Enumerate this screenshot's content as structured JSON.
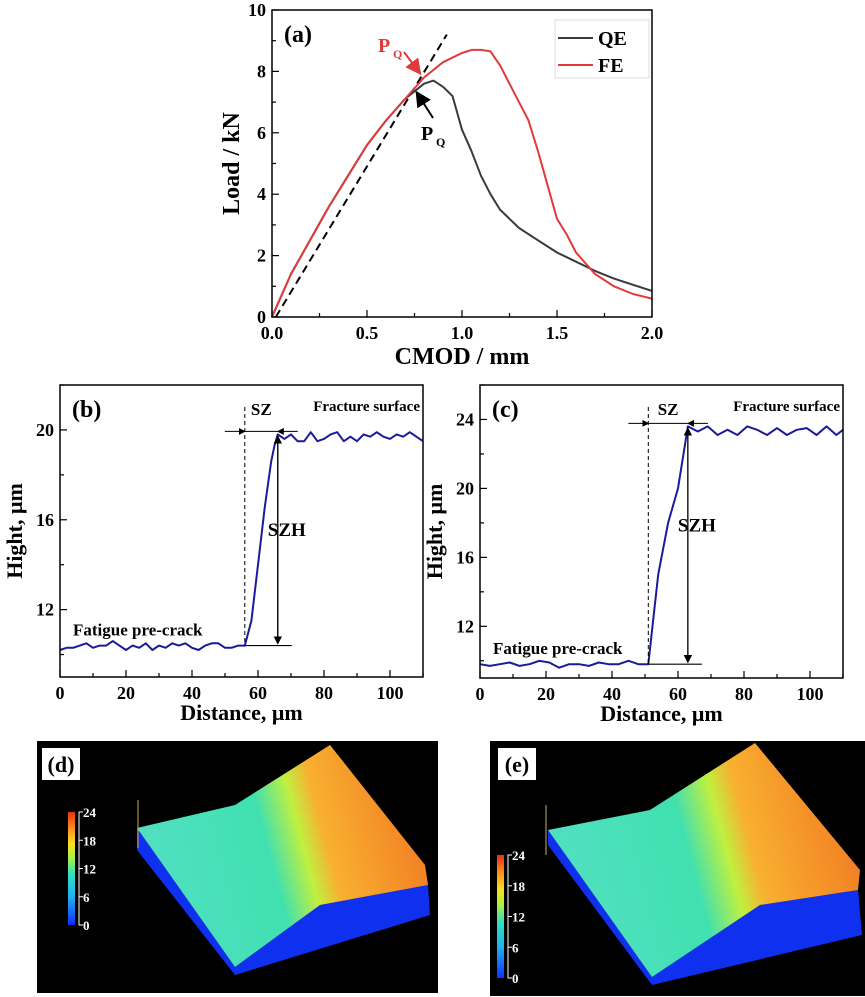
{
  "chart_data": [
    {
      "type": "line",
      "panel_label": "(a)",
      "xlabel": "CMOD / mm",
      "ylabel": "Load / kN",
      "xlim": [
        0,
        2.0
      ],
      "ylim": [
        0,
        10
      ],
      "xticks": [
        "0.0",
        "0.5",
        "1.0",
        "1.5",
        "2.0"
      ],
      "yticks": [
        "0",
        "2",
        "4",
        "6",
        "8",
        "10"
      ],
      "grid": false,
      "legend_placement": "top-right",
      "series": [
        {
          "name": "QE",
          "color": "#3a3a3a",
          "x": [
            0,
            0.1,
            0.2,
            0.3,
            0.4,
            0.5,
            0.6,
            0.7,
            0.8,
            0.85,
            0.9,
            0.95,
            1.0,
            1.05,
            1.1,
            1.15,
            1.2,
            1.3,
            1.4,
            1.5,
            1.6,
            1.7,
            1.8,
            1.9,
            2.0
          ],
          "y": [
            0,
            1.4,
            2.5,
            3.6,
            4.6,
            5.6,
            6.4,
            7.1,
            7.6,
            7.7,
            7.5,
            7.2,
            6.1,
            5.4,
            4.6,
            4.0,
            3.5,
            2.9,
            2.5,
            2.1,
            1.8,
            1.5,
            1.25,
            1.05,
            0.85
          ]
        },
        {
          "name": "FE",
          "color": "#e03a3a",
          "x": [
            0,
            0.1,
            0.2,
            0.3,
            0.4,
            0.5,
            0.6,
            0.7,
            0.8,
            0.9,
            1.0,
            1.05,
            1.1,
            1.15,
            1.2,
            1.3,
            1.35,
            1.4,
            1.5,
            1.55,
            1.6,
            1.7,
            1.8,
            1.9,
            2.0
          ],
          "y": [
            0,
            1.4,
            2.5,
            3.6,
            4.6,
            5.6,
            6.4,
            7.1,
            7.8,
            8.3,
            8.6,
            8.7,
            8.7,
            8.65,
            8.2,
            7.0,
            6.4,
            5.4,
            3.2,
            2.7,
            2.1,
            1.4,
            1.0,
            0.75,
            0.6
          ]
        }
      ],
      "reference_line": {
        "style": "dashed",
        "x": [
          0.02,
          0.92
        ],
        "y": [
          0,
          9.2
        ]
      },
      "annotations": [
        {
          "text": "P",
          "subscript": "Q",
          "color": "#e03a3a",
          "points_to": [
            0.79,
            7.8
          ]
        },
        {
          "text": "P",
          "subscript": "Q",
          "color": "#000000",
          "points_to": [
            0.74,
            7.45
          ]
        }
      ]
    },
    {
      "type": "line",
      "panel_label": "(b)",
      "xlabel": "Distance, μm",
      "ylabel": "Hight, μm",
      "xlim": [
        0,
        110
      ],
      "ylim": [
        9,
        22
      ],
      "xticks": [
        "0",
        "20",
        "40",
        "60",
        "80",
        "100"
      ],
      "yticks": [
        "12",
        "16",
        "20"
      ],
      "grid": false,
      "series": [
        {
          "color": "#1a1a9a",
          "x": [
            0,
            2,
            4,
            6,
            8,
            10,
            12,
            14,
            16,
            18,
            20,
            22,
            24,
            26,
            28,
            30,
            32,
            34,
            36,
            38,
            40,
            42,
            44,
            46,
            48,
            50,
            52,
            54,
            56,
            58,
            60,
            62,
            64,
            65,
            66,
            68,
            70,
            72,
            74,
            76,
            78,
            80,
            82,
            84,
            86,
            88,
            90,
            92,
            94,
            96,
            98,
            100,
            102,
            104,
            106,
            108,
            110
          ],
          "y": [
            10.2,
            10.3,
            10.3,
            10.4,
            10.5,
            10.3,
            10.4,
            10.4,
            10.6,
            10.4,
            10.2,
            10.4,
            10.3,
            10.5,
            10.2,
            10.4,
            10.3,
            10.5,
            10.4,
            10.5,
            10.3,
            10.2,
            10.4,
            10.5,
            10.5,
            10.3,
            10.3,
            10.4,
            10.4,
            11.5,
            14.0,
            16.5,
            18.6,
            19.3,
            19.8,
            19.6,
            19.8,
            19.5,
            19.5,
            19.9,
            19.5,
            19.6,
            19.8,
            19.9,
            19.5,
            19.7,
            19.5,
            19.8,
            19.7,
            19.9,
            19.7,
            19.6,
            19.8,
            19.7,
            19.9,
            19.7,
            19.5
          ]
        }
      ],
      "annotations": [
        "SZ",
        "Fracture surface",
        "SZH",
        "Fatigue pre-crack"
      ]
    },
    {
      "type": "line",
      "panel_label": "(c)",
      "xlabel": "Distance, μm",
      "ylabel": "Hight, μm",
      "xlim": [
        0,
        110
      ],
      "ylim": [
        9,
        26
      ],
      "xticks": [
        "0",
        "20",
        "40",
        "60",
        "80",
        "100"
      ],
      "yticks": [
        "12",
        "16",
        "20",
        "24"
      ],
      "grid": false,
      "series": [
        {
          "color": "#1a1a9a",
          "x": [
            0,
            3,
            6,
            9,
            12,
            15,
            18,
            21,
            24,
            27,
            30,
            33,
            36,
            39,
            42,
            45,
            48,
            51,
            54,
            57,
            60,
            63,
            66,
            69,
            72,
            75,
            78,
            81,
            84,
            87,
            90,
            93,
            96,
            99,
            102,
            105,
            108,
            110
          ],
          "y": [
            9.8,
            9.7,
            9.8,
            9.9,
            9.7,
            9.8,
            10.0,
            9.9,
            9.6,
            9.8,
            9.8,
            9.7,
            9.9,
            9.8,
            9.8,
            10.0,
            9.8,
            9.8,
            15.0,
            18.0,
            20.0,
            23.6,
            23.3,
            23.6,
            23.1,
            23.4,
            23.1,
            23.6,
            23.4,
            23.1,
            23.5,
            23.1,
            23.4,
            23.5,
            23.1,
            23.6,
            23.1,
            23.4
          ]
        }
      ],
      "annotations": [
        "SZ",
        "Fracture surface",
        "SZH",
        "Fatigue pre-crack"
      ]
    }
  ],
  "surface_plots": [
    {
      "panel_label": "(d)",
      "colorbar_ticks": [
        "24",
        "18",
        "12",
        "6",
        "0"
      ]
    },
    {
      "panel_label": "(e)",
      "colorbar_ticks": [
        "24",
        "18",
        "12",
        "6",
        "0"
      ]
    }
  ]
}
